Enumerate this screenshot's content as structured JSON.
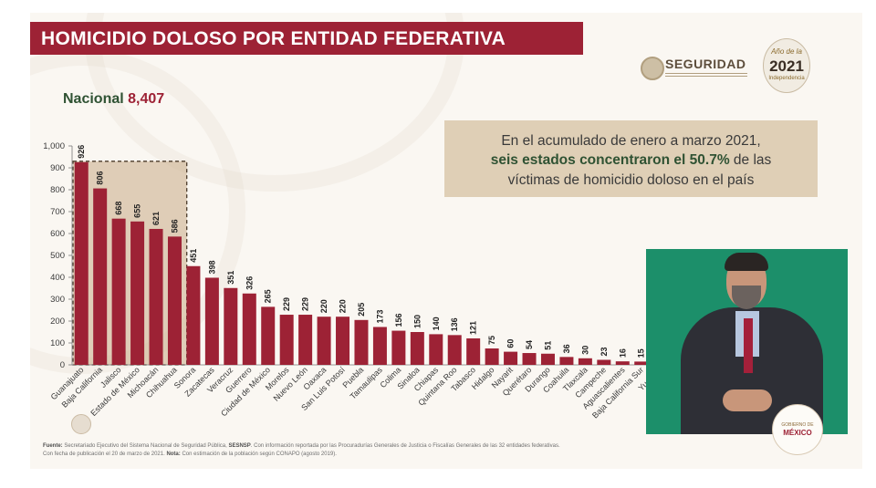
{
  "title": "HOMICIDIO DOLOSO POR ENTIDAD FEDERATIVA",
  "logos": {
    "seguridad": "SEGURIDAD",
    "year_top": "Año de la",
    "year": "2021",
    "year_bottom": "Independencia",
    "gobierno_top": "GOBIERNO DE",
    "gobierno_bottom": "MÉXICO"
  },
  "nacional": {
    "label": "Nacional",
    "value": "8,407"
  },
  "callout": {
    "line1": "En el acumulado de enero a marzo 2021,",
    "line2_highlight": "seis estados concentraron el 50.7%",
    "line2_rest": " de las",
    "line3": "víctimas de homicidio doloso en el país"
  },
  "footer": {
    "fuente_label": "Fuente:",
    "fuente_text": " Secretariado Ejecutivo del Sistema Nacional de Seguridad Pública, ",
    "sesnsp": "SESNSP",
    "fuente_rest": ". Con información reportada por las Procuradurías Generales de Justicia o Fiscalías Generales de las 32 entidades federativas.",
    "fecha_text": "Con fecha de publicación el 20 de marzo de 2021. ",
    "nota_label": "Nota:",
    "nota_text": " Con estimación de la población según CONAPO (agosto 2019)."
  },
  "colors": {
    "bar": "#9d2235",
    "title_bg": "#9d2235",
    "accent_green": "#2f5233",
    "callout_bg": "#dfcfb6",
    "highlight_box": "#c9ac86",
    "video_bg": "#1c8f6a"
  },
  "chart_data": {
    "type": "bar",
    "categories": [
      "Guanajuato",
      "Baja California",
      "Jalisco",
      "Estado de México",
      "Michoacán",
      "Chihuahua",
      "Sonora",
      "Zacatecas",
      "Veracruz",
      "Guerrero",
      "Ciudad de México",
      "Morelos",
      "Nuevo León",
      "Oaxaca",
      "San Luis Potosí",
      "Puebla",
      "Tamaulipas",
      "Colima",
      "Sinaloa",
      "Chiapas",
      "Quintana Roo",
      "Tabasco",
      "Hidalgo",
      "Nayarit",
      "Querétaro",
      "Durango",
      "Coahuila",
      "Tlaxcala",
      "Campeche",
      "Aguascalientes",
      "Baja California Sur",
      "Yucatán"
    ],
    "values": [
      926,
      806,
      668,
      655,
      621,
      586,
      451,
      398,
      351,
      326,
      265,
      229,
      229,
      220,
      220,
      205,
      173,
      156,
      150,
      140,
      136,
      121,
      75,
      60,
      54,
      51,
      36,
      30,
      23,
      16,
      15,
      15
    ],
    "value_labels": [
      "926",
      "806",
      "668",
      "655",
      "621",
      "586",
      "451",
      "398",
      "351",
      "326",
      "265",
      "229",
      "229",
      "220",
      "220",
      "205",
      "173",
      "156",
      "150",
      "140",
      "136",
      "121",
      "75",
      "60",
      "54",
      "51",
      "36",
      "30",
      "23",
      "16",
      "15",
      ""
    ],
    "y_ticks": [
      "0",
      "100",
      "200",
      "300",
      "400",
      "500",
      "600",
      "700",
      "800",
      "900",
      "1,000"
    ],
    "ylim": [
      0,
      1000
    ],
    "highlighted_count": 6,
    "grid": false,
    "xlabel": "",
    "ylabel": ""
  }
}
